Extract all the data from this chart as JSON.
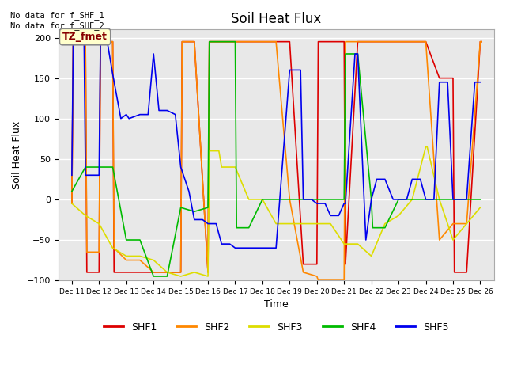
{
  "title": "Soil Heat Flux",
  "xlabel": "Time",
  "ylabel": "Soil Heat Flux",
  "annotation_text": "No data for f_SHF_1\nNo data for f_SHF_2",
  "legend_label": "TZ_fmet",
  "series_labels": [
    "SHF1",
    "SHF2",
    "SHF3",
    "SHF4",
    "SHF5"
  ],
  "series_colors": [
    "#dd0000",
    "#ff8800",
    "#dddd00",
    "#00bb00",
    "#0000ee"
  ],
  "xtick_labels": [
    "Dec 11",
    "Dec 12",
    "Dec 13",
    "Dec 14",
    "Dec 15",
    "Dec 16",
    "Dec 17",
    "Dec 18",
    "Dec 19",
    "Dec 20",
    "Dec 21",
    "Dec 22",
    "Dec 23",
    "Dec 24",
    "Dec 25",
    "Dec 26"
  ],
  "xtick_positions": [
    0,
    1,
    2,
    3,
    4,
    5,
    6,
    7,
    8,
    9,
    10,
    11,
    12,
    13,
    14,
    15
  ],
  "background_color": "#e8e8e8",
  "grid_color": "#ffffff",
  "fig_background": "#ffffff",
  "SHF1_x": [
    0.0,
    0.05,
    0.5,
    0.55,
    1.0,
    1.05,
    1.5,
    1.55,
    2.0,
    2.5,
    3.0,
    3.5,
    4.0,
    4.05,
    4.5,
    5.0,
    5.05,
    5.5,
    6.0,
    6.5,
    7.0,
    7.5,
    8.0,
    8.5,
    9.0,
    9.05,
    9.5,
    10.0,
    10.05,
    10.5,
    11.0,
    11.5,
    12.0,
    12.5,
    13.0,
    13.5,
    14.0,
    14.05,
    14.5,
    15.0,
    15.05
  ],
  "SHF1_y": [
    -5,
    195,
    195,
    -90,
    -90,
    195,
    195,
    -90,
    -90,
    -90,
    -90,
    -90,
    -90,
    195,
    195,
    -90,
    195,
    195,
    195,
    195,
    195,
    195,
    195,
    -80,
    -80,
    195,
    195,
    195,
    -80,
    195,
    195,
    195,
    195,
    195,
    195,
    150,
    150,
    -90,
    -90,
    195,
    195
  ],
  "SHF2_x": [
    0.0,
    0.05,
    0.5,
    0.55,
    1.0,
    1.05,
    1.5,
    1.55,
    2.0,
    2.5,
    3.0,
    3.5,
    4.0,
    4.05,
    4.5,
    5.0,
    5.05,
    5.5,
    6.0,
    6.5,
    7.0,
    7.5,
    8.0,
    8.5,
    9.0,
    9.05,
    9.5,
    10.0,
    10.05,
    10.5,
    11.0,
    11.5,
    12.0,
    12.5,
    13.0,
    13.5,
    14.0,
    14.5,
    15.0,
    15.05
  ],
  "SHF2_y": [
    -5,
    195,
    195,
    -65,
    -65,
    195,
    195,
    -60,
    -75,
    -75,
    -90,
    -90,
    -90,
    195,
    195,
    -90,
    195,
    195,
    195,
    195,
    195,
    195,
    0,
    -90,
    -95,
    -100,
    -100,
    -100,
    195,
    195,
    195,
    195,
    195,
    195,
    195,
    -50,
    -30,
    -30,
    195,
    195
  ],
  "SHF3_x": [
    0.0,
    0.5,
    1.0,
    1.5,
    2.0,
    2.5,
    3.0,
    3.5,
    4.0,
    4.5,
    5.0,
    5.05,
    5.4,
    5.5,
    6.0,
    6.5,
    7.0,
    7.5,
    8.0,
    8.5,
    9.0,
    9.5,
    10.0,
    10.5,
    11.0,
    11.5,
    12.0,
    12.5,
    13.0,
    13.05,
    13.5,
    14.0,
    14.5,
    15.0
  ],
  "SHF3_y": [
    -5,
    -20,
    -30,
    -60,
    -70,
    -70,
    -75,
    -90,
    -95,
    -90,
    -95,
    60,
    60,
    40,
    40,
    0,
    0,
    -30,
    -30,
    -30,
    -30,
    -30,
    -55,
    -55,
    -70,
    -30,
    -20,
    0,
    65,
    65,
    0,
    -50,
    -30,
    -10
  ],
  "SHF4_x": [
    0.0,
    0.5,
    1.0,
    1.5,
    2.0,
    2.5,
    3.0,
    3.5,
    4.0,
    4.5,
    5.0,
    5.05,
    5.5,
    6.0,
    6.05,
    6.5,
    7.0,
    7.5,
    8.0,
    8.5,
    9.0,
    9.5,
    10.0,
    10.05,
    10.5,
    11.0,
    11.05,
    11.5,
    12.0,
    12.5,
    13.0,
    13.5,
    14.0,
    14.5,
    15.0
  ],
  "SHF4_y": [
    10,
    40,
    40,
    40,
    -50,
    -50,
    -95,
    -95,
    -10,
    -15,
    -10,
    195,
    195,
    195,
    -35,
    -35,
    0,
    0,
    0,
    0,
    0,
    0,
    0,
    180,
    180,
    0,
    -35,
    -35,
    0,
    0,
    0,
    0,
    0,
    0,
    0
  ],
  "SHF5_x": [
    0.0,
    0.05,
    0.45,
    0.5,
    1.0,
    1.05,
    1.3,
    1.5,
    1.8,
    2.0,
    2.1,
    2.5,
    2.8,
    3.0,
    3.2,
    3.5,
    3.8,
    4.0,
    4.3,
    4.5,
    4.8,
    5.0,
    5.3,
    5.5,
    5.8,
    6.0,
    6.5,
    7.0,
    7.5,
    8.0,
    8.05,
    8.4,
    8.5,
    8.8,
    9.0,
    9.3,
    9.5,
    9.8,
    10.0,
    10.05,
    10.4,
    10.5,
    10.8,
    11.0,
    11.2,
    11.5,
    11.8,
    12.0,
    12.3,
    12.5,
    12.8,
    13.0,
    13.3,
    13.5,
    13.8,
    14.0,
    14.3,
    14.5,
    14.8,
    15.0
  ],
  "SHF5_y": [
    30,
    195,
    195,
    30,
    30,
    195,
    195,
    155,
    100,
    105,
    100,
    105,
    105,
    180,
    110,
    110,
    105,
    40,
    10,
    -25,
    -25,
    -30,
    -30,
    -55,
    -55,
    -60,
    -60,
    -60,
    -60,
    160,
    160,
    160,
    0,
    0,
    -5,
    -5,
    -20,
    -20,
    -5,
    -5,
    180,
    180,
    -50,
    0,
    25,
    25,
    0,
    0,
    0,
    25,
    25,
    0,
    0,
    145,
    145,
    0,
    0,
    0,
    145,
    145
  ]
}
